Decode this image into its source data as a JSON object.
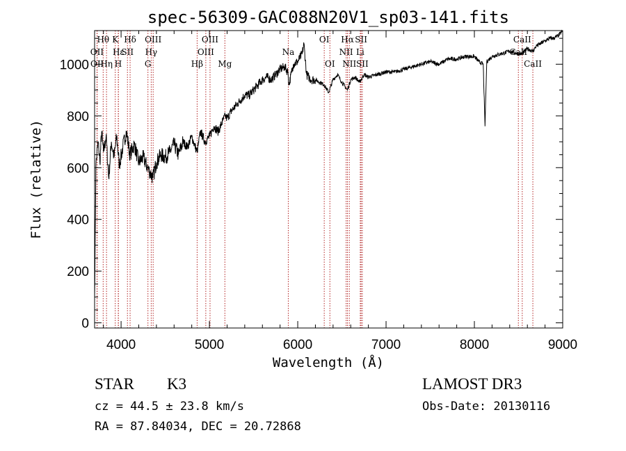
{
  "chart_data": {
    "type": "line",
    "title": "spec-56309-GAC088N20V1_sp03-141.fits",
    "xlabel": "Wavelength (Å)",
    "ylabel": "Flux (relative)",
    "xlim": [
      3700,
      9000
    ],
    "ylim": [
      -20,
      1130
    ],
    "x_ticks": [
      4000,
      5000,
      6000,
      7000,
      8000,
      9000
    ],
    "y_ticks": [
      0,
      200,
      400,
      600,
      800,
      1000
    ],
    "tick_labels_x": [
      "4000",
      "5000",
      "6000",
      "7000",
      "8000",
      "9000"
    ],
    "tick_labels_y": [
      "0",
      "200",
      "400",
      "600",
      "800",
      "1000"
    ],
    "line_color": "#000000",
    "marker_color": "#b22222",
    "spectrum": {
      "x": [
        3700,
        3715,
        3740,
        3760,
        3780,
        3800,
        3830,
        3860,
        3890,
        3920,
        3950,
        3980,
        4020,
        4060,
        4100,
        4150,
        4200,
        4250,
        4300,
        4330,
        4360,
        4400,
        4450,
        4500,
        4550,
        4600,
        4650,
        4700,
        4750,
        4800,
        4860,
        4900,
        4950,
        5000,
        5050,
        5100,
        5150,
        5180,
        5200,
        5250,
        5300,
        5350,
        5400,
        5450,
        5500,
        5550,
        5600,
        5650,
        5700,
        5750,
        5800,
        5850,
        5890,
        5900,
        5950,
        6000,
        6050,
        6070,
        6100,
        6150,
        6200,
        6250,
        6300,
        6350,
        6400,
        6450,
        6500,
        6563,
        6600,
        6650,
        6700,
        6750,
        6800,
        6900,
        7000,
        7100,
        7200,
        7300,
        7400,
        7500,
        7600,
        7700,
        7800,
        7900,
        8000,
        8050,
        8100,
        8120,
        8140,
        8200,
        8300,
        8400,
        8500,
        8542,
        8600,
        8662,
        8700,
        8750,
        8800,
        8850,
        8900,
        8950,
        9000
      ],
      "y": [
        100,
        610,
        700,
        620,
        740,
        660,
        720,
        560,
        700,
        640,
        720,
        610,
        680,
        740,
        650,
        690,
        620,
        640,
        600,
        580,
        560,
        620,
        650,
        640,
        660,
        690,
        650,
        700,
        680,
        720,
        660,
        740,
        700,
        720,
        760,
        740,
        780,
        800,
        790,
        820,
        840,
        860,
        880,
        880,
        900,
        920,
        940,
        950,
        940,
        960,
        980,
        990,
        970,
        920,
        1000,
        1010,
        1040,
        1080,
        960,
        940,
        940,
        930,
        920,
        890,
        940,
        960,
        930,
        900,
        940,
        950,
        930,
        960,
        950,
        960,
        970,
        970,
        980,
        990,
        1000,
        1010,
        1000,
        1020,
        1020,
        1030,
        1030,
        1010,
        1000,
        760,
        1010,
        1030,
        1040,
        1050,
        1040,
        1040,
        1060,
        1050,
        1070,
        1080,
        1090,
        1100,
        1100,
        1110,
        1130
      ]
    },
    "lines": [
      {
        "label": "Hθ",
        "x": 3797,
        "row": 1
      },
      {
        "label": "OII",
        "x": 3727,
        "row": 2
      },
      {
        "label": "OII",
        "x": 3729,
        "row": 3
      },
      {
        "label": "Hη",
        "x": 3835,
        "row": 3
      },
      {
        "label": "K",
        "x": 3934,
        "row": 1
      },
      {
        "label": "Hε",
        "x": 3970,
        "row": 2
      },
      {
        "label": "H",
        "x": 3968,
        "row": 3
      },
      {
        "label": "SII",
        "x": 4072,
        "row": 2
      },
      {
        "label": "Hδ",
        "x": 4102,
        "row": 1
      },
      {
        "label": "OIII",
        "x": 4363,
        "row": 1
      },
      {
        "label": "Hγ",
        "x": 4341,
        "row": 2
      },
      {
        "label": "G",
        "x": 4304,
        "row": 3
      },
      {
        "label": "Hβ",
        "x": 4861,
        "row": 3
      },
      {
        "label": "OIII",
        "x": 5007,
        "row": 1
      },
      {
        "label": "OIII",
        "x": 4959,
        "row": 2
      },
      {
        "label": "Mg",
        "x": 5175,
        "row": 3
      },
      {
        "label": "Na",
        "x": 5893,
        "row": 2
      },
      {
        "label": "OI",
        "x": 6300,
        "row": 1
      },
      {
        "label": "OI",
        "x": 6364,
        "row": 3
      },
      {
        "label": "Hα",
        "x": 6563,
        "row": 1
      },
      {
        "label": "NII",
        "x": 6548,
        "row": 2
      },
      {
        "label": "NII",
        "x": 6584,
        "row": 3
      },
      {
        "label": "SII",
        "x": 6717,
        "row": 1
      },
      {
        "label": "Li",
        "x": 6708,
        "row": 2
      },
      {
        "label": "SII",
        "x": 6731,
        "row": 3
      },
      {
        "label": "CaII",
        "x": 8542,
        "row": 1
      },
      {
        "label": "CaII",
        "x": 8498,
        "row": 2
      },
      {
        "label": "CaII",
        "x": 8662,
        "row": 3
      }
    ]
  },
  "info": {
    "class_label": "STAR",
    "subclass": "K3",
    "cz_text": "cz = 44.5 ± 23.8 km/s",
    "radec_text": "RA =  87.84034, DEC =  20.72868",
    "survey": "LAMOST DR3",
    "obs_date": "Obs-Date: 20130116"
  }
}
